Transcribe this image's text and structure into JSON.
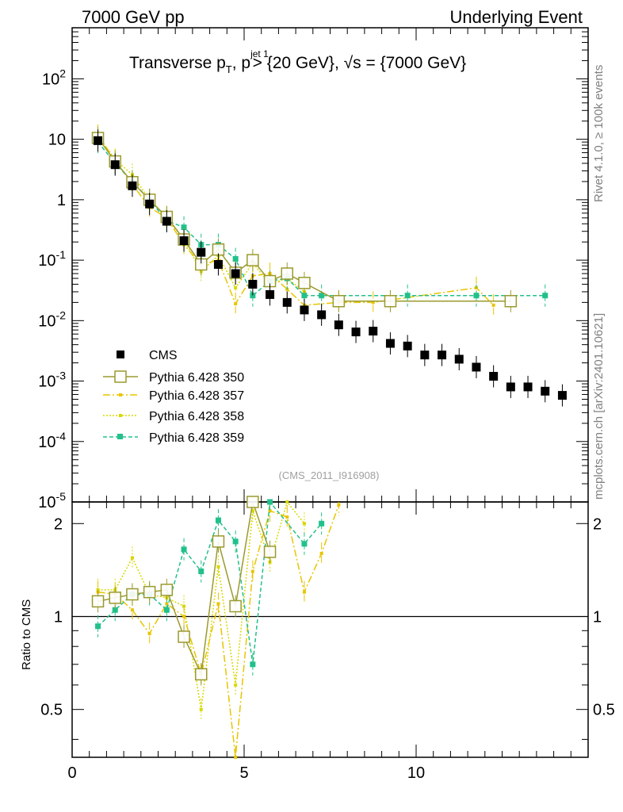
{
  "header": {
    "left": "7000 GeV pp",
    "right": "Underlying Event",
    "side_rivet": "Rivet 4.1.0, ≥ 100k events",
    "side_mcplots": "mcplots.cern.ch [arXiv:2401.10621]",
    "watermark": "(CMS_2011_I916908)"
  },
  "title_parts": {
    "p1": "Transverse p",
    "sub_T": "T",
    "p2": ", p",
    "sup_jet": "jet 1",
    "p3": " > {20 GeV}, √s = {7000 GeV}"
  },
  "colors": {
    "CMS": "#000000",
    "p350": "#9a9a2e",
    "p357": "#e8c500",
    "p358": "#d8d800",
    "p359": "#22c08a"
  },
  "chart_data": [
    {
      "type": "scatter",
      "panel": "main",
      "title": "Transverse pT, pT jet 1 > {20 GeV}, √s = {7000 GeV}",
      "xlabel": "",
      "ylabel": "",
      "xlim": [
        0,
        15
      ],
      "ylim": [
        1e-05,
        700
      ],
      "yscale": "log",
      "ytick_labels": [
        "10^-5",
        "10^-4",
        "10^-3",
        "10^-2",
        "10^-1",
        "1",
        "10",
        "10^2"
      ],
      "legend_position": "left-middle",
      "series": [
        {
          "key": "CMS",
          "name": "CMS",
          "style": "data",
          "x": [
            0.75,
            1.25,
            1.75,
            2.25,
            2.75,
            3.25,
            3.75,
            4.25,
            4.75,
            5.25,
            5.75,
            6.25,
            6.75,
            7.25,
            7.75,
            8.25,
            8.75,
            9.25,
            9.75,
            10.25,
            10.75,
            11.25,
            11.75,
            12.25,
            12.75,
            13.25,
            13.75,
            14.25
          ],
          "y": [
            9.5,
            3.8,
            1.7,
            0.85,
            0.44,
            0.21,
            0.135,
            0.085,
            0.06,
            0.04,
            0.027,
            0.02,
            0.015,
            0.0125,
            0.0085,
            0.0065,
            0.0067,
            0.0042,
            0.0038,
            0.0027,
            0.0027,
            0.0023,
            0.0017,
            0.0012,
            0.0008,
            0.0008,
            0.00068,
            0.00058
          ]
        },
        {
          "key": "p350",
          "name": "Pythia 6.428 350",
          "style": "solid-open-square",
          "x": [
            0.75,
            1.25,
            1.75,
            2.25,
            2.75,
            3.25,
            3.75,
            4.25,
            4.75,
            5.25,
            5.75,
            6.25,
            6.75,
            7.75,
            9.25,
            12.75
          ],
          "y": [
            10.5,
            4.3,
            1.95,
            1.0,
            0.52,
            0.22,
            0.085,
            0.15,
            0.062,
            0.1,
            0.045,
            0.06,
            0.042,
            0.021,
            0.021,
            0.021
          ]
        },
        {
          "key": "p357",
          "name": "Pythia 6.428 357",
          "style": "dashdot-small-marker",
          "x": [
            0.75,
            1.25,
            1.75,
            2.25,
            2.75,
            3.25,
            3.75,
            4.25,
            4.75,
            5.25,
            5.75,
            6.25,
            6.75,
            7.75,
            8.75,
            11.75,
            12.25
          ],
          "y": [
            11.5,
            4.5,
            1.8,
            0.75,
            0.5,
            0.18,
            0.085,
            0.1,
            0.019,
            0.055,
            0.06,
            0.033,
            0.018,
            0.02,
            0.02,
            0.035,
            0.018
          ]
        },
        {
          "key": "p358",
          "name": "Pythia 6.428 358",
          "style": "dotted-small-marker",
          "x": [
            0.75,
            1.25,
            1.75,
            2.25,
            2.75,
            3.25,
            3.75,
            4.25,
            4.75,
            5.25,
            5.75,
            6.25,
            6.75
          ],
          "y": [
            11.5,
            4.6,
            2.6,
            1.0,
            0.5,
            0.22,
            0.065,
            0.12,
            0.035,
            0.09,
            0.04,
            0.05,
            0.03
          ]
        },
        {
          "key": "p359",
          "name": "Pythia 6.428 359",
          "style": "dashed-filled-square",
          "x": [
            0.75,
            1.25,
            1.75,
            2.25,
            2.75,
            3.25,
            3.75,
            4.25,
            4.75,
            5.25,
            5.75,
            6.25,
            6.75,
            7.25,
            9.75,
            11.75,
            13.75
          ],
          "y": [
            9.0,
            4.0,
            2.0,
            1.0,
            0.45,
            0.35,
            0.18,
            0.18,
            0.105,
            0.026,
            0.045,
            0.05,
            0.026,
            0.026,
            0.026,
            0.026,
            0.026
          ]
        }
      ]
    },
    {
      "type": "scatter",
      "panel": "ratio",
      "xlabel": "",
      "ylabel": "Ratio to CMS",
      "xlim": [
        0,
        15
      ],
      "ylim": [
        0.35,
        2.35
      ],
      "yscale": "log",
      "reference_line": 1,
      "x_tick_labels": [
        "0",
        "5",
        "10"
      ],
      "y_tick_labels": [
        "0.5",
        "1",
        "2"
      ],
      "series": [
        {
          "key": "p350",
          "name": "Pythia 6.428 350",
          "x": [
            0.75,
            1.25,
            1.75,
            2.25,
            2.75,
            3.25,
            3.75,
            4.25,
            4.75,
            5.25,
            5.75
          ],
          "y": [
            1.12,
            1.15,
            1.18,
            1.2,
            1.22,
            0.86,
            0.65,
            1.75,
            1.08,
            2.5,
            1.62
          ]
        },
        {
          "key": "p357",
          "name": "Pythia 6.428 357",
          "x": [
            0.75,
            1.25,
            1.75,
            2.25,
            2.75,
            3.25,
            3.75,
            4.25,
            4.75,
            5.25,
            5.75,
            6.25,
            6.75,
            7.25,
            7.75
          ],
          "y": [
            1.2,
            1.18,
            1.05,
            0.88,
            1.1,
            1.0,
            0.65,
            1.1,
            0.35,
            1.4,
            2.2,
            2.1,
            1.2,
            1.6,
            2.3
          ]
        },
        {
          "key": "p358",
          "name": "Pythia 6.428 358",
          "x": [
            0.75,
            1.25,
            1.75,
            2.25,
            2.75,
            3.25,
            3.75,
            4.25,
            4.75,
            5.25,
            5.75,
            6.25,
            6.75
          ],
          "y": [
            1.22,
            1.22,
            1.55,
            1.18,
            1.15,
            1.08,
            0.5,
            1.45,
            0.6,
            2.2,
            1.5,
            2.4,
            2.0
          ]
        },
        {
          "key": "p359",
          "name": "Pythia 6.428 359",
          "x": [
            0.75,
            1.25,
            1.75,
            2.25,
            2.75,
            3.25,
            3.75,
            4.25,
            4.75,
            5.25,
            5.75,
            6.75,
            7.25
          ],
          "y": [
            0.93,
            1.05,
            1.18,
            1.18,
            1.05,
            1.65,
            1.4,
            2.05,
            1.75,
            0.7,
            2.4,
            1.72,
            2.0
          ]
        }
      ]
    }
  ]
}
